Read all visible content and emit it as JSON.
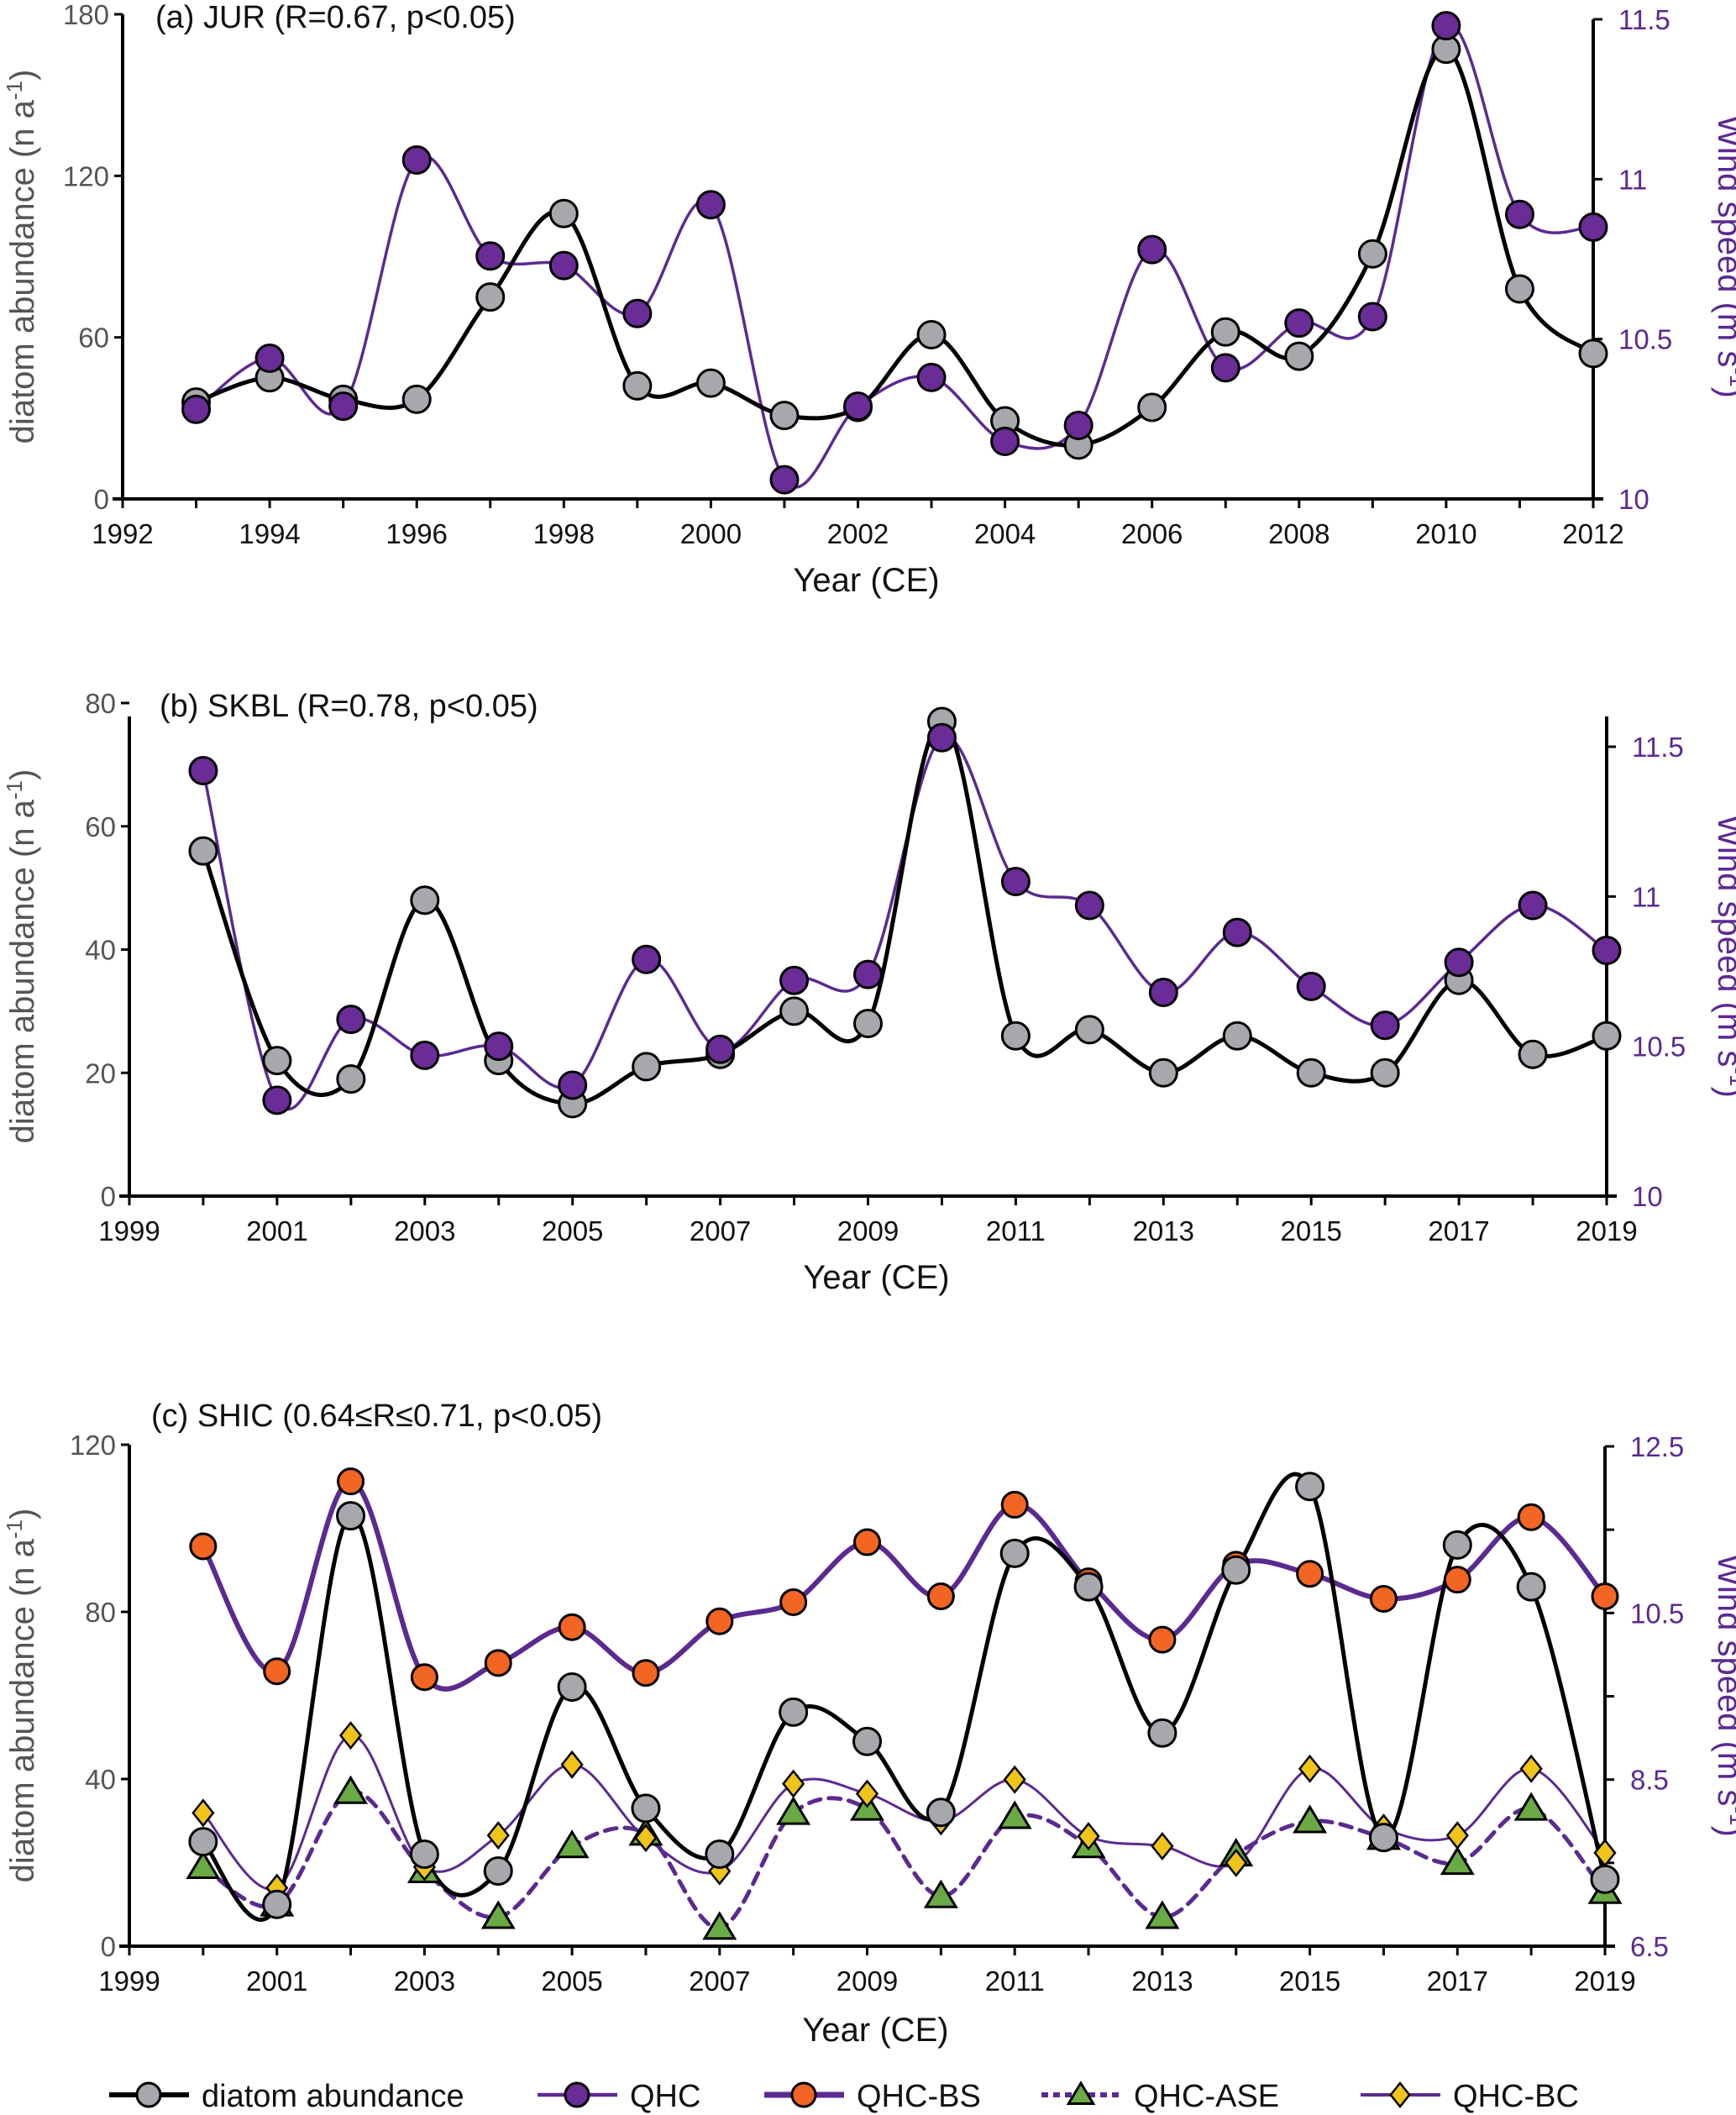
{
  "figure": {
    "legend": [
      {
        "key": "diatom",
        "label": "diatom abundance"
      },
      {
        "key": "qhc",
        "label": "QHC"
      },
      {
        "key": "qhc_bs",
        "label": "QHC-BS"
      },
      {
        "key": "qhc_ase",
        "label": "QHC-ASE"
      },
      {
        "key": "qhc_bc",
        "label": "QHC-BC"
      }
    ],
    "colors": {
      "diatom_line": "#000000",
      "diatom_marker": "#a6a8ab",
      "qhc_line": "#5b2a91",
      "qhc_marker": "#6a2c96",
      "qhc_bs_marker": "#f26522",
      "qhc_ase_marker": "#6aaa45",
      "qhc_bc_marker": "#f0c419",
      "left_axis_text": "#555555",
      "right_axis_text": "#5b2a91"
    }
  },
  "chart_data": [
    {
      "id": "a",
      "type": "line",
      "title": "(a) JUR (R=0.67, p<0.05)",
      "xlabel": "Year (CE)",
      "ylabel": "diatom abundance  (n a",
      "ylabel_sup": "-1",
      "ylabel_end": ")",
      "y2label": "Wind speed (m s",
      "y2label_sup": "-1",
      "y2label_end": ")",
      "xlim": [
        1992,
        2012
      ],
      "xticks": [
        1992,
        1993,
        1994,
        1995,
        1996,
        1997,
        1998,
        1999,
        2000,
        2001,
        2002,
        2003,
        2004,
        2005,
        2006,
        2007,
        2008,
        2009,
        2010,
        2011,
        2012
      ],
      "xticklabels": [
        "1992",
        "1994",
        "1996",
        "1998",
        "2000",
        "2002",
        "2004",
        "2006",
        "2008",
        "2010",
        "2012"
      ],
      "ylim": [
        0,
        180
      ],
      "yticks": [
        0,
        60,
        120,
        180
      ],
      "yticklabels": [
        "0",
        "60",
        "120",
        "180"
      ],
      "y2lim": [
        10,
        11.5
      ],
      "y2ticks": [
        10,
        10.5,
        11,
        11.5
      ],
      "y2ticklabels": [
        "10",
        "10.5",
        "11",
        "11.5"
      ],
      "x": [
        1993,
        1994,
        1995,
        1996,
        1997,
        1998,
        1999,
        2000,
        2001,
        2002,
        2003,
        2004,
        2005,
        2006,
        2007,
        2008,
        2009,
        2010,
        2011,
        2012
      ],
      "series": [
        {
          "name": "diatom abundance",
          "key": "diatom",
          "axis": "left",
          "values": [
            36,
            45,
            37,
            37,
            75,
            106,
            42,
            43,
            31,
            34,
            61,
            29,
            20,
            34,
            62,
            53,
            91,
            167,
            78,
            54
          ]
        },
        {
          "name": "QHC",
          "key": "qhc",
          "axis": "right",
          "values": [
            10.28,
            10.44,
            10.29,
            11.06,
            10.76,
            10.73,
            10.58,
            10.92,
            10.06,
            10.29,
            10.38,
            10.18,
            10.23,
            10.78,
            10.41,
            10.55,
            10.57,
            11.48,
            10.89,
            10.85
          ]
        }
      ]
    },
    {
      "id": "b",
      "type": "line",
      "title": "(b) SKBL (R=0.78, p<0.05)",
      "xlabel": "Year (CE)",
      "ylabel": "diatom abundance  (n a",
      "ylabel_sup": "-1",
      "ylabel_end": ")",
      "y2label": "Wind speed (m s",
      "y2label_sup": "-1",
      "y2label_end": ")",
      "xlim": [
        1999,
        2019
      ],
      "xticks": [
        1999,
        2000,
        2001,
        2002,
        2003,
        2004,
        2005,
        2006,
        2007,
        2008,
        2009,
        2010,
        2011,
        2012,
        2013,
        2014,
        2015,
        2016,
        2017,
        2018,
        2019
      ],
      "xticklabels": [
        "1999",
        "2001",
        "2003",
        "2005",
        "2007",
        "2009",
        "2011",
        "2013",
        "2015",
        "2017",
        "2019"
      ],
      "ylim": [
        0,
        80
      ],
      "yticks": [
        0,
        20,
        40,
        60,
        80
      ],
      "yticklabels": [
        "0",
        "20",
        "40",
        "60",
        "80"
      ],
      "y2lim": [
        10,
        11.6
      ],
      "y2ticks": [
        10,
        10.5,
        11,
        11.5
      ],
      "y2ticklabels": [
        "10",
        "10.5",
        "11",
        "11.5"
      ],
      "x": [
        2000,
        2001,
        2002,
        2003,
        2004,
        2005,
        2006,
        2007,
        2008,
        2009,
        2010,
        2011,
        2012,
        2013,
        2014,
        2015,
        2016,
        2017,
        2018,
        2019
      ],
      "series": [
        {
          "name": "diatom abundance",
          "key": "diatom",
          "axis": "left",
          "values": [
            56,
            22,
            19,
            48,
            22,
            15,
            21,
            23,
            30,
            28,
            77,
            26,
            27,
            20,
            26,
            20,
            20,
            35,
            23,
            26
          ]
        },
        {
          "name": "QHC",
          "key": "qhc",
          "axis": "right",
          "values": [
            11.42,
            10.32,
            10.59,
            10.47,
            10.5,
            10.37,
            10.79,
            10.49,
            10.72,
            10.74,
            11.53,
            11.05,
            10.97,
            10.68,
            10.88,
            10.7,
            10.57,
            10.78,
            10.97,
            10.82
          ]
        }
      ]
    },
    {
      "id": "c",
      "type": "line",
      "title": "(c) SHIC (0.64≤R≤0.71, p<0.05)",
      "xlabel": "Year (CE)",
      "ylabel": "diatom abundance  (n a",
      "ylabel_sup": "-1",
      "ylabel_end": ")",
      "y2label": "Wind speed (m s",
      "y2label_sup": "-1",
      "y2label_end": ")",
      "xlim": [
        1999,
        2019
      ],
      "xticks": [
        1999,
        2000,
        2001,
        2002,
        2003,
        2004,
        2005,
        2006,
        2007,
        2008,
        2009,
        2010,
        2011,
        2012,
        2013,
        2014,
        2015,
        2016,
        2017,
        2018,
        2019
      ],
      "xticklabels": [
        "1999",
        "2001",
        "2003",
        "2005",
        "2007",
        "2009",
        "2011",
        "2013",
        "2015",
        "2017",
        "2019"
      ],
      "ylim": [
        0,
        120
      ],
      "yticks": [
        0,
        40,
        80,
        120
      ],
      "yticklabels": [
        "0",
        "40",
        "80",
        "120"
      ],
      "y2lim": [
        6.5,
        12.5
      ],
      "y2ticks": [
        6.5,
        7.5,
        8.5,
        9.5,
        10.5,
        11.5,
        12.5
      ],
      "y2ticklabels": [
        "6.5",
        "",
        "8.5",
        "",
        "10.5",
        "",
        "12.5"
      ],
      "x": [
        2000,
        2001,
        2002,
        2003,
        2004,
        2005,
        2006,
        2007,
        2008,
        2009,
        2010,
        2011,
        2012,
        2013,
        2014,
        2015,
        2016,
        2017,
        2018,
        2019
      ],
      "series": [
        {
          "name": "diatom abundance",
          "key": "diatom",
          "axis": "left",
          "values": [
            25,
            10,
            103,
            22,
            18,
            62,
            33,
            22,
            56,
            49,
            32,
            94,
            86,
            51,
            90,
            110,
            26,
            96,
            86,
            16
          ]
        },
        {
          "name": "QHC-BS",
          "key": "qhc_bs",
          "axis": "right",
          "values": [
            11.3,
            9.8,
            12.08,
            9.73,
            9.9,
            10.33,
            9.78,
            10.4,
            10.63,
            11.35,
            10.7,
            11.8,
            10.88,
            10.18,
            11.08,
            10.97,
            10.67,
            10.9,
            11.65,
            10.7
          ]
        },
        {
          "name": "QHC-ASE",
          "key": "qhc_ase",
          "axis": "right",
          "values": [
            7.45,
            7.0,
            8.35,
            7.4,
            6.85,
            7.7,
            7.85,
            6.72,
            8.1,
            8.15,
            7.1,
            8.05,
            7.7,
            6.85,
            7.6,
            8.0,
            7.8,
            7.5,
            8.15,
            7.15
          ]
        },
        {
          "name": "QHC-BC",
          "key": "qhc_bc",
          "axis": "right",
          "values": [
            8.1,
            7.2,
            9.03,
            7.45,
            7.83,
            8.68,
            7.8,
            7.4,
            8.45,
            8.33,
            8.0,
            8.5,
            7.82,
            7.7,
            7.5,
            8.63,
            7.92,
            7.83,
            8.63,
            7.62
          ]
        }
      ]
    }
  ]
}
